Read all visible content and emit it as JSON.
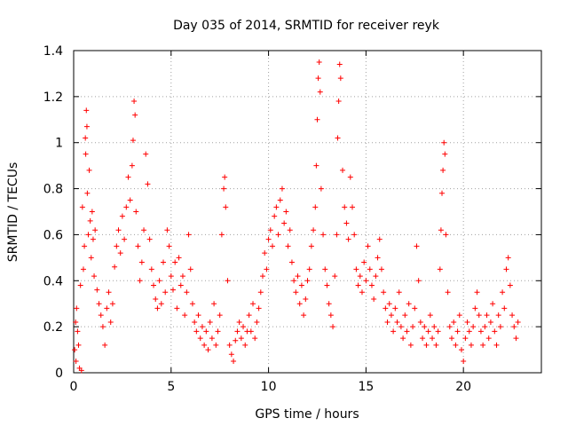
{
  "chart_data": {
    "type": "scatter",
    "title": "Day 035 of 2014, SRMTID for receiver reyk",
    "xlabel": "GPS time / hours",
    "ylabel": "SRMTID / TECUs",
    "xlim": [
      0,
      24
    ],
    "ylim": [
      0,
      1.4
    ],
    "xticks": [
      0,
      5,
      10,
      15,
      20
    ],
    "xtick_labels": [
      "0",
      "5",
      "10",
      "15",
      "20"
    ],
    "yticks": [
      0,
      0.2,
      0.4,
      0.6,
      0.8,
      1,
      1.2,
      1.4
    ],
    "ytick_labels": [
      "0",
      "0.2",
      "0.4",
      "0.6",
      "0.8",
      "1",
      "1.2",
      "1.4"
    ],
    "grid": true,
    "marker": "+",
    "color": "#ff0000",
    "series": [
      {
        "name": "SRMTID",
        "points": [
          [
            0.05,
            0.1
          ],
          [
            0.1,
            0.22
          ],
          [
            0.12,
            0.05
          ],
          [
            0.15,
            0.28
          ],
          [
            0.2,
            0.18
          ],
          [
            0.25,
            0.12
          ],
          [
            0.3,
            0.02
          ],
          [
            0.35,
            0.38
          ],
          [
            0.4,
            0.01
          ],
          [
            0.45,
            0.72
          ],
          [
            0.5,
            0.45
          ],
          [
            0.55,
            0.55
          ],
          [
            0.6,
            1.02
          ],
          [
            0.62,
            0.95
          ],
          [
            0.65,
            1.14
          ],
          [
            0.68,
            1.07
          ],
          [
            0.7,
            0.78
          ],
          [
            0.75,
            0.6
          ],
          [
            0.8,
            0.88
          ],
          [
            0.85,
            0.66
          ],
          [
            0.9,
            0.5
          ],
          [
            0.95,
            0.7
          ],
          [
            1.0,
            0.58
          ],
          [
            1.05,
            0.42
          ],
          [
            1.1,
            0.62
          ],
          [
            1.2,
            0.36
          ],
          [
            1.3,
            0.3
          ],
          [
            1.4,
            0.25
          ],
          [
            1.5,
            0.2
          ],
          [
            1.6,
            0.12
          ],
          [
            1.7,
            0.28
          ],
          [
            1.8,
            0.35
          ],
          [
            1.9,
            0.22
          ],
          [
            2.0,
            0.3
          ],
          [
            2.1,
            0.46
          ],
          [
            2.2,
            0.55
          ],
          [
            2.3,
            0.62
          ],
          [
            2.4,
            0.52
          ],
          [
            2.5,
            0.68
          ],
          [
            2.6,
            0.58
          ],
          [
            2.7,
            0.72
          ],
          [
            2.8,
            0.85
          ],
          [
            2.9,
            0.75
          ],
          [
            3.0,
            0.9
          ],
          [
            3.05,
            1.01
          ],
          [
            3.1,
            1.18
          ],
          [
            3.15,
            1.12
          ],
          [
            3.2,
            0.7
          ],
          [
            3.3,
            0.55
          ],
          [
            3.4,
            0.4
          ],
          [
            3.5,
            0.48
          ],
          [
            3.6,
            0.62
          ],
          [
            3.7,
            0.95
          ],
          [
            3.8,
            0.82
          ],
          [
            3.9,
            0.58
          ],
          [
            4.0,
            0.45
          ],
          [
            4.1,
            0.38
          ],
          [
            4.2,
            0.32
          ],
          [
            4.3,
            0.28
          ],
          [
            4.4,
            0.4
          ],
          [
            4.5,
            0.3
          ],
          [
            4.6,
            0.48
          ],
          [
            4.7,
            0.35
          ],
          [
            4.8,
            0.62
          ],
          [
            4.9,
            0.55
          ],
          [
            5.0,
            0.42
          ],
          [
            5.1,
            0.36
          ],
          [
            5.2,
            0.48
          ],
          [
            5.3,
            0.28
          ],
          [
            5.4,
            0.5
          ],
          [
            5.5,
            0.38
          ],
          [
            5.6,
            0.42
          ],
          [
            5.7,
            0.25
          ],
          [
            5.8,
            0.35
          ],
          [
            5.9,
            0.6
          ],
          [
            6.0,
            0.45
          ],
          [
            6.1,
            0.3
          ],
          [
            6.2,
            0.22
          ],
          [
            6.3,
            0.18
          ],
          [
            6.4,
            0.25
          ],
          [
            6.5,
            0.15
          ],
          [
            6.6,
            0.2
          ],
          [
            6.7,
            0.12
          ],
          [
            6.8,
            0.18
          ],
          [
            6.9,
            0.1
          ],
          [
            7.0,
            0.22
          ],
          [
            7.1,
            0.15
          ],
          [
            7.2,
            0.3
          ],
          [
            7.3,
            0.12
          ],
          [
            7.4,
            0.18
          ],
          [
            7.5,
            0.25
          ],
          [
            7.6,
            0.6
          ],
          [
            7.7,
            0.8
          ],
          [
            7.75,
            0.85
          ],
          [
            7.8,
            0.72
          ],
          [
            7.9,
            0.4
          ],
          [
            8.0,
            0.12
          ],
          [
            8.1,
            0.08
          ],
          [
            8.2,
            0.05
          ],
          [
            8.3,
            0.14
          ],
          [
            8.4,
            0.18
          ],
          [
            8.5,
            0.22
          ],
          [
            8.6,
            0.15
          ],
          [
            8.7,
            0.2
          ],
          [
            8.8,
            0.12
          ],
          [
            8.9,
            0.18
          ],
          [
            9.0,
            0.25
          ],
          [
            9.1,
            0.18
          ],
          [
            9.2,
            0.3
          ],
          [
            9.3,
            0.15
          ],
          [
            9.4,
            0.22
          ],
          [
            9.5,
            0.28
          ],
          [
            9.6,
            0.35
          ],
          [
            9.7,
            0.42
          ],
          [
            9.8,
            0.52
          ],
          [
            9.9,
            0.45
          ],
          [
            10.0,
            0.58
          ],
          [
            10.1,
            0.62
          ],
          [
            10.2,
            0.55
          ],
          [
            10.3,
            0.68
          ],
          [
            10.4,
            0.72
          ],
          [
            10.5,
            0.6
          ],
          [
            10.6,
            0.75
          ],
          [
            10.7,
            0.8
          ],
          [
            10.8,
            0.65
          ],
          [
            10.9,
            0.7
          ],
          [
            11.0,
            0.55
          ],
          [
            11.1,
            0.62
          ],
          [
            11.2,
            0.48
          ],
          [
            11.3,
            0.4
          ],
          [
            11.4,
            0.35
          ],
          [
            11.5,
            0.42
          ],
          [
            11.6,
            0.3
          ],
          [
            11.7,
            0.38
          ],
          [
            11.8,
            0.25
          ],
          [
            11.9,
            0.32
          ],
          [
            12.0,
            0.4
          ],
          [
            12.1,
            0.45
          ],
          [
            12.2,
            0.55
          ],
          [
            12.3,
            0.62
          ],
          [
            12.4,
            0.72
          ],
          [
            12.45,
            0.9
          ],
          [
            12.5,
            1.1
          ],
          [
            12.55,
            1.28
          ],
          [
            12.6,
            1.35
          ],
          [
            12.65,
            1.22
          ],
          [
            12.7,
            0.8
          ],
          [
            12.8,
            0.6
          ],
          [
            12.9,
            0.45
          ],
          [
            13.0,
            0.38
          ],
          [
            13.1,
            0.3
          ],
          [
            13.2,
            0.25
          ],
          [
            13.3,
            0.2
          ],
          [
            13.4,
            0.42
          ],
          [
            13.5,
            0.6
          ],
          [
            13.55,
            1.02
          ],
          [
            13.6,
            1.18
          ],
          [
            13.65,
            1.34
          ],
          [
            13.7,
            1.28
          ],
          [
            13.8,
            0.88
          ],
          [
            13.9,
            0.72
          ],
          [
            14.0,
            0.65
          ],
          [
            14.1,
            0.58
          ],
          [
            14.2,
            0.85
          ],
          [
            14.3,
            0.72
          ],
          [
            14.4,
            0.6
          ],
          [
            14.5,
            0.45
          ],
          [
            14.6,
            0.38
          ],
          [
            14.7,
            0.42
          ],
          [
            14.8,
            0.35
          ],
          [
            14.9,
            0.48
          ],
          [
            15.0,
            0.4
          ],
          [
            15.1,
            0.55
          ],
          [
            15.2,
            0.45
          ],
          [
            15.3,
            0.38
          ],
          [
            15.4,
            0.32
          ],
          [
            15.5,
            0.42
          ],
          [
            15.6,
            0.5
          ],
          [
            15.7,
            0.58
          ],
          [
            15.8,
            0.45
          ],
          [
            15.9,
            0.35
          ],
          [
            16.0,
            0.28
          ],
          [
            16.1,
            0.22
          ],
          [
            16.2,
            0.3
          ],
          [
            16.3,
            0.25
          ],
          [
            16.4,
            0.18
          ],
          [
            16.5,
            0.28
          ],
          [
            16.6,
            0.22
          ],
          [
            16.7,
            0.35
          ],
          [
            16.8,
            0.2
          ],
          [
            16.9,
            0.15
          ],
          [
            17.0,
            0.25
          ],
          [
            17.1,
            0.18
          ],
          [
            17.2,
            0.3
          ],
          [
            17.3,
            0.12
          ],
          [
            17.4,
            0.2
          ],
          [
            17.5,
            0.28
          ],
          [
            17.6,
            0.55
          ],
          [
            17.7,
            0.4
          ],
          [
            17.8,
            0.22
          ],
          [
            17.9,
            0.15
          ],
          [
            18.0,
            0.2
          ],
          [
            18.1,
            0.12
          ],
          [
            18.2,
            0.18
          ],
          [
            18.3,
            0.25
          ],
          [
            18.4,
            0.15
          ],
          [
            18.5,
            0.2
          ],
          [
            18.6,
            0.12
          ],
          [
            18.7,
            0.18
          ],
          [
            18.8,
            0.45
          ],
          [
            18.85,
            0.62
          ],
          [
            18.9,
            0.78
          ],
          [
            18.95,
            0.88
          ],
          [
            19.0,
            1.0
          ],
          [
            19.05,
            0.95
          ],
          [
            19.1,
            0.6
          ],
          [
            19.2,
            0.35
          ],
          [
            19.3,
            0.2
          ],
          [
            19.4,
            0.15
          ],
          [
            19.5,
            0.22
          ],
          [
            19.6,
            0.12
          ],
          [
            19.7,
            0.18
          ],
          [
            19.8,
            0.25
          ],
          [
            19.9,
            0.1
          ],
          [
            20.0,
            0.05
          ],
          [
            20.1,
            0.15
          ],
          [
            20.2,
            0.22
          ],
          [
            20.3,
            0.18
          ],
          [
            20.4,
            0.12
          ],
          [
            20.5,
            0.2
          ],
          [
            20.6,
            0.28
          ],
          [
            20.7,
            0.35
          ],
          [
            20.8,
            0.25
          ],
          [
            20.9,
            0.18
          ],
          [
            21.0,
            0.12
          ],
          [
            21.1,
            0.2
          ],
          [
            21.2,
            0.25
          ],
          [
            21.3,
            0.15
          ],
          [
            21.4,
            0.22
          ],
          [
            21.5,
            0.3
          ],
          [
            21.6,
            0.18
          ],
          [
            21.7,
            0.12
          ],
          [
            21.8,
            0.25
          ],
          [
            21.9,
            0.2
          ],
          [
            22.0,
            0.35
          ],
          [
            22.1,
            0.28
          ],
          [
            22.2,
            0.45
          ],
          [
            22.3,
            0.5
          ],
          [
            22.4,
            0.38
          ],
          [
            22.5,
            0.25
          ],
          [
            22.6,
            0.2
          ],
          [
            22.7,
            0.15
          ],
          [
            22.8,
            0.22
          ]
        ]
      }
    ]
  }
}
